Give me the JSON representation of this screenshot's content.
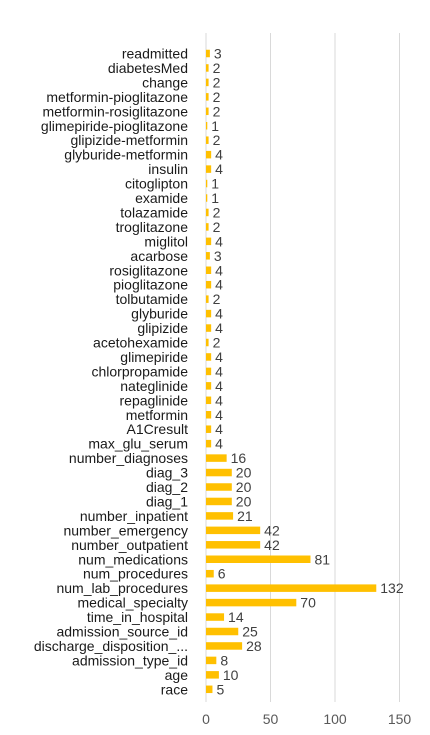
{
  "chart_data": {
    "type": "bar",
    "orientation": "horizontal",
    "categories": [
      "readmitted",
      "diabetesMed",
      "change",
      "metformin-pioglitazone",
      "metformin-rosiglitazone",
      "glimepiride-pioglitazone",
      "glipizide-metformin",
      "glyburide-metformin",
      "insulin",
      "citoglipton",
      "examide",
      "tolazamide",
      "troglitazone",
      "miglitol",
      "acarbose",
      "rosiglitazone",
      "pioglitazone",
      "tolbutamide",
      "glyburide",
      "glipizide",
      "acetohexamide",
      "glimepiride",
      "chlorpropamide",
      "nateglinide",
      "repaglinide",
      "metformin",
      "A1Cresult",
      "max_glu_serum",
      "number_diagnoses",
      "diag_3",
      "diag_2",
      "diag_1",
      "number_inpatient",
      "number_emergency",
      "number_outpatient",
      "num_medications",
      "num_procedures",
      "num_lab_procedures",
      "medical_specialty",
      "time_in_hospital",
      "admission_source_id",
      "discharge_disposition_...",
      "admission_type_id",
      "age",
      "race"
    ],
    "values": [
      3,
      2,
      2,
      2,
      2,
      1,
      2,
      4,
      4,
      1,
      1,
      2,
      2,
      4,
      3,
      4,
      4,
      2,
      4,
      4,
      2,
      4,
      4,
      4,
      4,
      4,
      4,
      4,
      16,
      20,
      20,
      20,
      21,
      42,
      42,
      81,
      6,
      132,
      70,
      14,
      25,
      28,
      8,
      10,
      5
    ],
    "xlim": [
      0,
      150
    ],
    "xticks": [
      0,
      50,
      100,
      150
    ],
    "grid": "vertical",
    "legend": "none",
    "bar_color": "#FFC000",
    "grid_color": "#D9D9D9",
    "title": "",
    "xlabel": "",
    "ylabel": ""
  }
}
